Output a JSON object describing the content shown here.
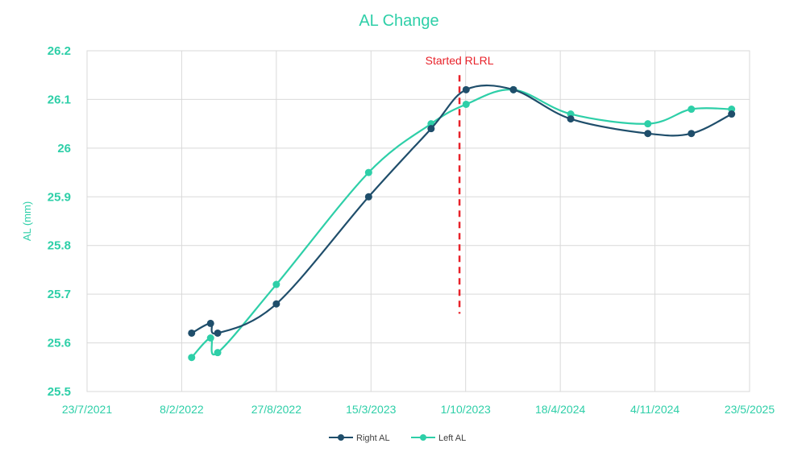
{
  "chart_data": {
    "type": "line",
    "title": "AL Change",
    "ylabel": "AL (mm)",
    "xlabel": "",
    "ylim": [
      25.5,
      26.2
    ],
    "yticks": [
      25.5,
      25.6,
      25.7,
      25.8,
      25.9,
      26,
      26.1,
      26.2
    ],
    "ytick_labels": [
      "25.5",
      "25.6",
      "25.7",
      "25.8",
      "25.9",
      "26",
      "26.1",
      "26.2"
    ],
    "xlim": [
      "2021-07-23",
      "2025-05-23"
    ],
    "xticks": [
      "2021-07-23",
      "2022-02-08",
      "2022-08-27",
      "2023-03-15",
      "2023-10-01",
      "2024-04-18",
      "2024-11-04",
      "2025-05-23"
    ],
    "xtick_labels": [
      "23/7/2021",
      "8/2/2022",
      "27/8/2022",
      "15/3/2023",
      "1/10/2023",
      "18/4/2024",
      "4/11/2024",
      "23/5/2025"
    ],
    "grid": true,
    "legend_position": "bottom",
    "series": [
      {
        "name": "Right AL",
        "color": "#1f4e6b",
        "x": [
          "2022-03-01",
          "2022-04-10",
          "2022-04-25",
          "2022-08-27",
          "2023-03-10",
          "2023-07-20",
          "2023-10-02",
          "2024-01-10",
          "2024-05-10",
          "2024-10-20",
          "2025-01-20",
          "2025-04-15"
        ],
        "y": [
          25.62,
          25.64,
          25.62,
          25.68,
          25.9,
          26.04,
          26.12,
          26.12,
          26.06,
          26.03,
          26.03,
          26.07
        ]
      },
      {
        "name": "Left AL",
        "color": "#2ecfa8",
        "x": [
          "2022-03-01",
          "2022-04-10",
          "2022-04-25",
          "2022-08-27",
          "2023-03-10",
          "2023-07-20",
          "2023-10-02",
          "2024-01-10",
          "2024-05-10",
          "2024-10-20",
          "2025-01-20",
          "2025-04-15"
        ],
        "y": [
          25.57,
          25.61,
          25.58,
          25.72,
          25.95,
          26.05,
          26.09,
          26.12,
          26.07,
          26.05,
          26.08,
          26.08
        ]
      }
    ],
    "annotations": [
      {
        "text": "Started RLRL",
        "x": "2023-09-18",
        "color": "#e8222a",
        "line_y": [
          25.66,
          26.15
        ]
      }
    ]
  },
  "colors": {
    "accent": "#2ecfa8",
    "annotation": "#e8222a",
    "grid": "#d9d9d9"
  }
}
